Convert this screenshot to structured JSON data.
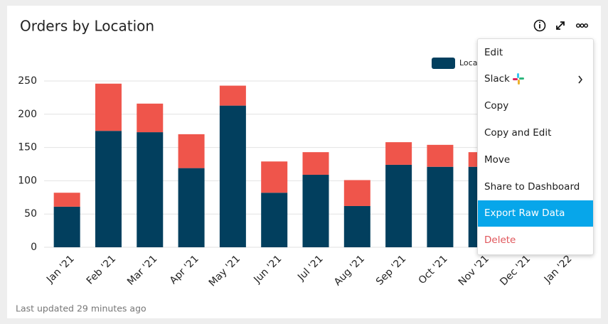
{
  "chart_data": {
    "type": "stacked-bar",
    "title": "Orders by Location",
    "categories": [
      "Jan '21",
      "Feb '21",
      "Mar '21",
      "Apr '21",
      "May '21",
      "Jun '21",
      "Jul '21",
      "Aug '21",
      "Sep '21",
      "Oct '21",
      "Nov '21",
      "Dec '21",
      "Jan '22"
    ],
    "series": [
      {
        "name": "Loca",
        "color": "#023f5e",
        "values": [
          61,
          175,
          173,
          119,
          213,
          82,
          109,
          62,
          124,
          121,
          121,
          null,
          null
        ]
      },
      {
        "color": "#ef554b",
        "values": [
          21,
          71,
          43,
          51,
          30,
          47,
          34,
          39,
          34,
          33,
          22,
          null,
          null
        ]
      }
    ],
    "ylim": [
      0,
      250
    ],
    "yticks": [
      0,
      50,
      100,
      150,
      200,
      250
    ],
    "grid": true
  },
  "footer": "Last updated 29 minutes ago",
  "menu": {
    "items": [
      "Edit",
      "Slack",
      "Copy",
      "Copy and Edit",
      "Move",
      "Share to Dashboard",
      "Export Raw Data",
      "Delete"
    ],
    "highlighted": 6,
    "danger": 7
  }
}
